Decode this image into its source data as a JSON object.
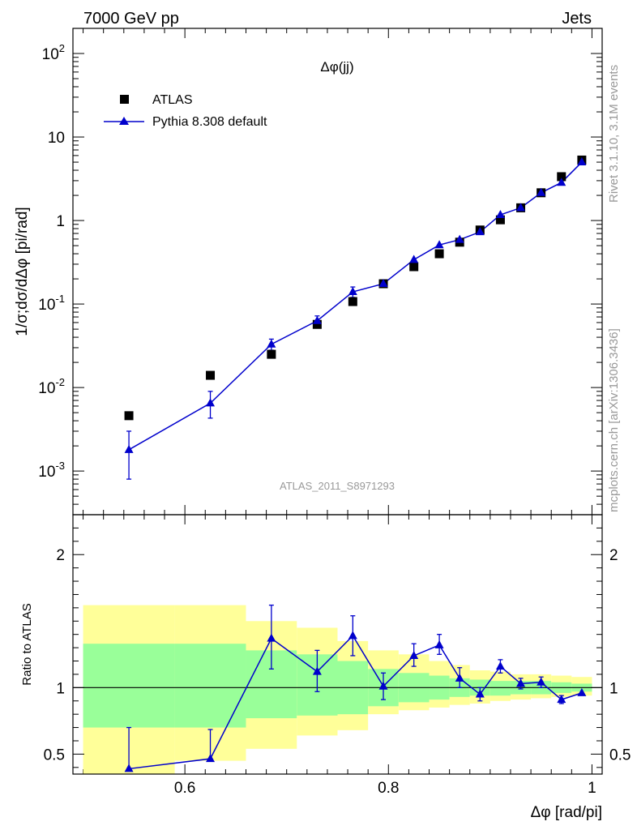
{
  "header": {
    "energy_label": "7000 GeV pp",
    "category_label": "Jets"
  },
  "side_labels": {
    "rivet": "Rivet 3.1.10,  3.1M events",
    "source": "mcplots.cern.ch [arXiv:1306.3436]"
  },
  "main_panel": {
    "title": "Δφ(jj)",
    "ylabel": "1/σ;dσ/dΔφ [pi/rad]",
    "analysis_label": "ATLAS_2011_S8971293",
    "legend": [
      "ATLAS",
      "Pythia 8.308 default"
    ]
  },
  "ratio_panel": {
    "ylabel": "Ratio to ATLAS"
  },
  "xlabel": "Δφ [rad/pi]",
  "colors": {
    "mc": "#0000cc",
    "band_inner": "#99ff99",
    "band_outer": "#ffff99",
    "data": "#000000"
  },
  "chart_data": [
    {
      "type": "scatter",
      "title": "Δφ(jj)",
      "xlabel": "Δφ [rad/pi]",
      "ylabel": "1/σ;dσ/dΔφ [pi/rad]",
      "xlim": [
        0.49,
        1.01
      ],
      "ylim": [
        0.0003,
        200
      ],
      "yscale": "log",
      "x_ticks": [
        "0.6",
        "0.8",
        "1"
      ],
      "y_ticks": [
        "10^-3",
        "10^-2",
        "10^-1",
        "1",
        "10",
        "10^2"
      ],
      "series": [
        {
          "name": "ATLAS",
          "marker": "square",
          "x": [
            0.545,
            0.625,
            0.685,
            0.73,
            0.765,
            0.795,
            0.825,
            0.85,
            0.87,
            0.89,
            0.91,
            0.93,
            0.95,
            0.97,
            0.99
          ],
          "y": [
            0.0046,
            0.014,
            0.025,
            0.057,
            0.107,
            0.175,
            0.28,
            0.4,
            0.55,
            0.77,
            1.02,
            1.42,
            2.15,
            3.35,
            5.3
          ]
        },
        {
          "name": "Pythia 8.308 default",
          "marker": "triangle",
          "x": [
            0.545,
            0.625,
            0.685,
            0.73,
            0.765,
            0.795,
            0.825,
            0.85,
            0.87,
            0.89,
            0.91,
            0.93,
            0.95,
            0.97,
            0.99
          ],
          "y": [
            0.0018,
            0.0065,
            0.033,
            0.063,
            0.14,
            0.175,
            0.34,
            0.51,
            0.59,
            0.73,
            1.17,
            1.42,
            2.15,
            2.85,
            5.0
          ],
          "y_err_low": [
            0.001,
            0.0022,
            0.005,
            0.008,
            0.02,
            0.017,
            0.03,
            0.04,
            0.045,
            0.05,
            0.08,
            0.09,
            0.12,
            0.15,
            0.2
          ],
          "y_err_high": [
            0.0012,
            0.0025,
            0.005,
            0.009,
            0.02,
            0.017,
            0.03,
            0.04,
            0.045,
            0.05,
            0.08,
            0.09,
            0.12,
            0.15,
            0.2
          ]
        }
      ],
      "legend_position": "top-left"
    },
    {
      "type": "line",
      "ylabel": "Ratio to ATLAS",
      "xlim": [
        0.49,
        1.01
      ],
      "ylim": [
        0.35,
        2.3
      ],
      "x_ticks": [
        "0.6",
        "0.8",
        "1"
      ],
      "y_ticks": [
        "0.5",
        "1",
        "2"
      ],
      "reference_line": 1,
      "x_edges": [
        0.5,
        0.59,
        0.66,
        0.71,
        0.75,
        0.78,
        0.81,
        0.84,
        0.86,
        0.88,
        0.9,
        0.92,
        0.94,
        0.96,
        0.98,
        1.0
      ],
      "band_outer": {
        "low": [
          0.3,
          0.45,
          0.54,
          0.64,
          0.68,
          0.8,
          0.83,
          0.85,
          0.87,
          0.88,
          0.9,
          0.91,
          0.92,
          0.93,
          0.94
        ],
        "high": [
          1.62,
          1.62,
          1.5,
          1.45,
          1.35,
          1.28,
          1.25,
          1.2,
          1.17,
          1.13,
          1.12,
          1.1,
          1.1,
          1.09,
          1.08
        ]
      },
      "band_inner": {
        "low": [
          0.7,
          0.7,
          0.77,
          0.79,
          0.8,
          0.86,
          0.89,
          0.91,
          0.93,
          0.94,
          0.94,
          0.95,
          0.95,
          0.96,
          0.97
        ],
        "high": [
          1.33,
          1.33,
          1.28,
          1.25,
          1.2,
          1.14,
          1.11,
          1.09,
          1.07,
          1.06,
          1.05,
          1.05,
          1.05,
          1.04,
          1.03
        ]
      },
      "series": [
        {
          "name": "Pythia 8.308 default",
          "x": [
            0.545,
            0.625,
            0.685,
            0.73,
            0.765,
            0.795,
            0.825,
            0.85,
            0.87,
            0.89,
            0.91,
            0.93,
            0.95,
            0.97,
            0.99
          ],
          "y": [
            0.39,
            0.465,
            1.37,
            1.12,
            1.39,
            1.01,
            1.24,
            1.32,
            1.07,
            0.95,
            1.16,
            1.03,
            1.04,
            0.91,
            0.96
          ],
          "y_err_low": [
            0.0,
            0.0,
            0.23,
            0.15,
            0.15,
            0.1,
            0.08,
            0.07,
            0.07,
            0.05,
            0.05,
            0.04,
            0.04,
            0.03,
            0.0
          ],
          "y_err_high": [
            0.31,
            0.22,
            0.25,
            0.16,
            0.15,
            0.1,
            0.09,
            0.08,
            0.08,
            0.05,
            0.05,
            0.04,
            0.04,
            0.03,
            0.0
          ]
        }
      ]
    }
  ]
}
